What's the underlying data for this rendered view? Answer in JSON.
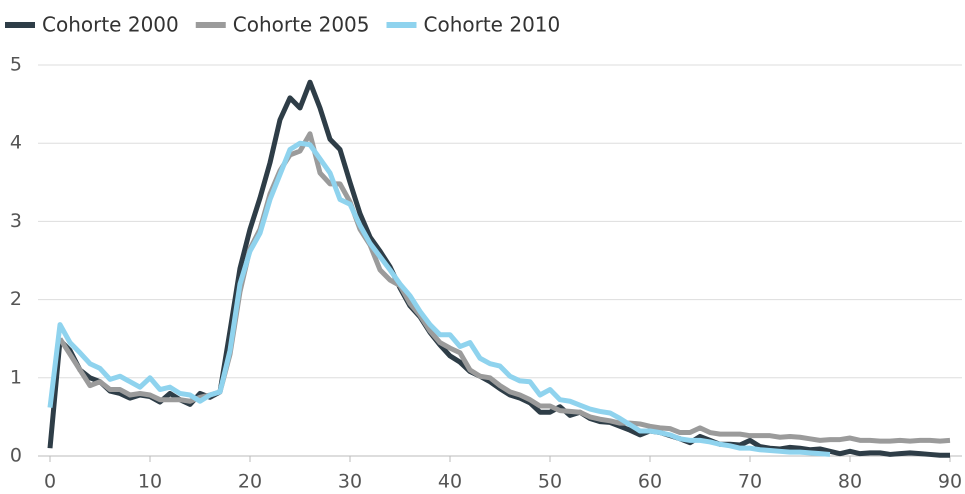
{
  "chart_data": {
    "type": "line",
    "x": [
      0,
      1,
      2,
      3,
      4,
      5,
      6,
      7,
      8,
      9,
      10,
      11,
      12,
      13,
      14,
      15,
      16,
      17,
      18,
      19,
      20,
      21,
      22,
      23,
      24,
      25,
      26,
      27,
      28,
      29,
      30,
      31,
      32,
      33,
      34,
      35,
      36,
      37,
      38,
      39,
      40,
      41,
      42,
      43,
      44,
      45,
      46,
      47,
      48,
      49,
      50,
      51,
      52,
      53,
      54,
      55,
      56,
      57,
      58,
      59,
      60,
      61,
      62,
      63,
      64,
      65,
      66,
      67,
      68,
      69,
      70,
      71,
      72,
      73,
      74,
      75,
      76,
      77,
      78,
      79,
      80,
      81,
      82,
      83,
      84,
      85,
      86,
      87,
      88,
      89,
      90
    ],
    "series": [
      {
        "name": "Cohorte 2000",
        "color": "#2e3d47",
        "values": [
          0.1,
          1.48,
          1.35,
          1.1,
          1.0,
          0.95,
          0.83,
          0.8,
          0.74,
          0.78,
          0.76,
          0.69,
          0.8,
          0.72,
          0.66,
          0.8,
          0.75,
          0.82,
          1.6,
          2.4,
          2.9,
          3.3,
          3.75,
          4.3,
          4.58,
          4.45,
          4.78,
          4.45,
          4.05,
          3.92,
          3.5,
          3.1,
          2.8,
          2.62,
          2.42,
          2.15,
          1.92,
          1.78,
          1.58,
          1.42,
          1.28,
          1.2,
          1.08,
          1.02,
          0.95,
          0.86,
          0.78,
          0.74,
          0.68,
          0.56,
          0.56,
          0.63,
          0.52,
          0.56,
          0.48,
          0.44,
          0.43,
          0.38,
          0.33,
          0.27,
          0.32,
          0.3,
          0.26,
          0.22,
          0.17,
          0.25,
          0.2,
          0.15,
          0.15,
          0.14,
          0.2,
          0.12,
          0.1,
          0.09,
          0.11,
          0.1,
          0.08,
          0.09,
          0.06,
          0.03,
          0.06,
          0.03,
          0.04,
          0.04,
          0.02,
          0.03,
          0.04,
          0.03,
          0.02,
          0.01,
          0.01
        ]
      },
      {
        "name": "Cohorte 2005",
        "color": "#9b9b9b",
        "values": [
          null,
          1.5,
          1.3,
          1.1,
          0.9,
          0.95,
          0.85,
          0.85,
          0.78,
          0.8,
          0.78,
          0.72,
          0.72,
          0.72,
          0.7,
          0.75,
          0.78,
          0.82,
          1.3,
          2.1,
          2.65,
          2.9,
          3.35,
          3.65,
          3.85,
          3.9,
          4.12,
          3.62,
          3.48,
          3.48,
          3.25,
          2.9,
          2.7,
          2.38,
          2.25,
          2.18,
          1.95,
          1.8,
          1.6,
          1.45,
          1.38,
          1.32,
          1.1,
          1.02,
          1.0,
          0.9,
          0.82,
          0.78,
          0.72,
          0.64,
          0.64,
          0.58,
          0.57,
          0.56,
          0.5,
          0.47,
          0.45,
          0.42,
          0.42,
          0.41,
          0.38,
          0.36,
          0.35,
          0.3,
          0.3,
          0.36,
          0.3,
          0.28,
          0.28,
          0.28,
          0.26,
          0.26,
          0.26,
          0.24,
          0.25,
          0.24,
          0.22,
          0.2,
          0.21,
          0.21,
          0.23,
          0.2,
          0.2,
          0.19,
          0.19,
          0.2,
          0.19,
          0.2,
          0.2,
          0.19,
          0.2
        ]
      },
      {
        "name": "Cohorte 2010",
        "color": "#8fd3ee",
        "values": [
          0.62,
          1.68,
          1.45,
          1.32,
          1.18,
          1.12,
          0.98,
          1.02,
          0.95,
          0.88,
          1.0,
          0.85,
          0.88,
          0.8,
          0.78,
          0.7,
          0.78,
          0.82,
          1.35,
          2.2,
          2.62,
          2.85,
          3.28,
          3.6,
          3.92,
          4.0,
          3.98,
          3.8,
          3.62,
          3.28,
          3.22,
          2.95,
          2.72,
          2.55,
          2.38,
          2.2,
          2.05,
          1.85,
          1.68,
          1.55,
          1.55,
          1.4,
          1.45,
          1.25,
          1.18,
          1.15,
          1.02,
          0.96,
          0.95,
          0.78,
          0.85,
          0.72,
          0.7,
          0.65,
          0.6,
          0.57,
          0.55,
          0.48,
          0.4,
          0.32,
          0.32,
          0.3,
          0.27,
          0.22,
          0.2,
          0.2,
          0.18,
          0.15,
          0.13,
          0.1,
          0.1,
          0.08,
          0.07,
          0.06,
          0.05,
          0.05,
          0.04,
          0.03,
          0.02,
          null,
          null,
          null,
          null,
          null,
          null,
          null,
          null,
          null,
          null,
          null,
          null
        ]
      }
    ],
    "xlim": [
      0,
      90
    ],
    "xticks": [
      0,
      10,
      20,
      30,
      40,
      50,
      60,
      70,
      80,
      90
    ],
    "ylim": [
      0,
      5
    ],
    "yticks": [
      0,
      1,
      2,
      3,
      4,
      5
    ],
    "grid": true,
    "legend": "top-left"
  }
}
